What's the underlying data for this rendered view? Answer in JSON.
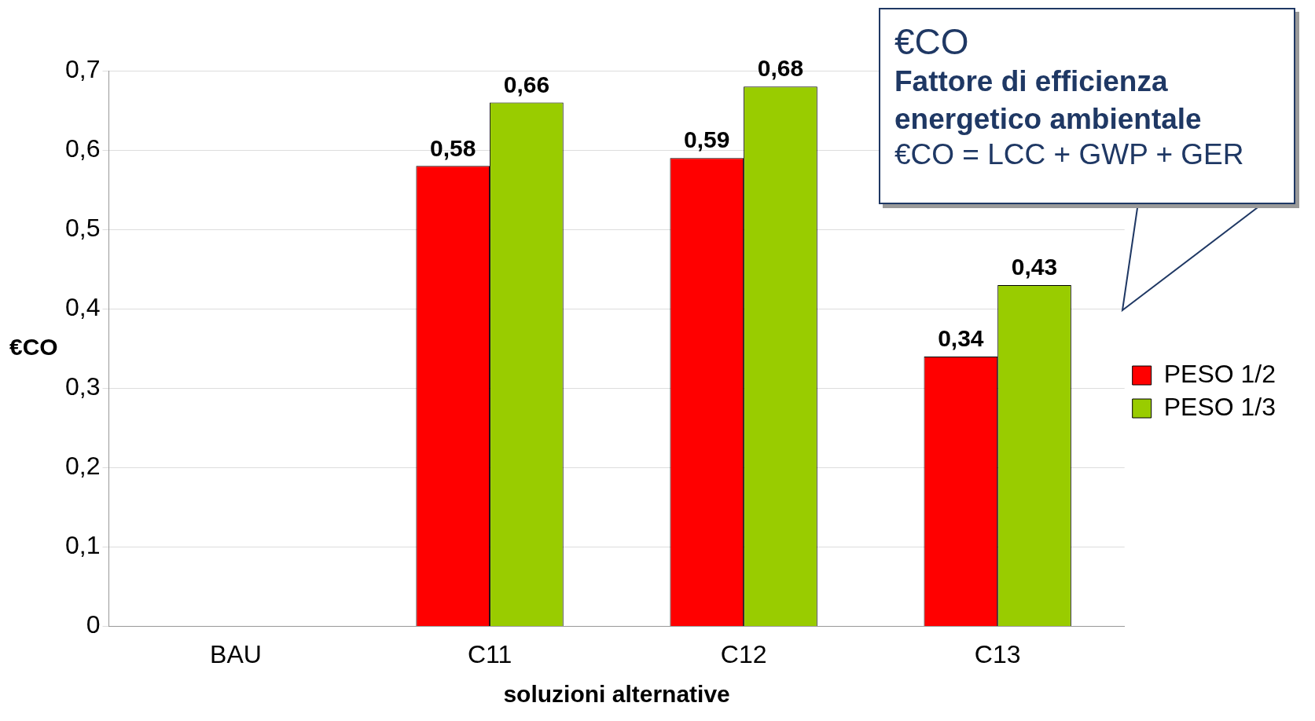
{
  "chart_data": {
    "type": "bar",
    "xlabel": "soluzioni alternative",
    "ylabel": "€CO",
    "categories": [
      "BAU",
      "C11",
      "C12",
      "C13"
    ],
    "series": [
      {
        "name": "PESO 1/2",
        "color": "#ff0000",
        "values": [
          0,
          0.58,
          0.59,
          0.34
        ],
        "value_labels": [
          null,
          "0,58",
          "0,59",
          "0,34"
        ]
      },
      {
        "name": "PESO 1/3",
        "color": "#99cc00",
        "values": [
          0,
          0.66,
          0.68,
          0.43
        ],
        "value_labels": [
          null,
          "0,66",
          "0,68",
          "0,43"
        ]
      }
    ],
    "ylim": [
      0,
      0.7
    ],
    "yticks": [
      0,
      {
        "value": 0.1,
        "label": "0,1"
      },
      {
        "value": 0.2,
        "label": "0,2"
      },
      {
        "value": 0.3,
        "label": "0,3"
      },
      {
        "value": 0.4,
        "label": "0,4"
      },
      {
        "value": 0.5,
        "label": "0,5"
      },
      {
        "value": 0.6,
        "label": "0,6"
      },
      {
        "value": 0.7,
        "label": "0,7"
      }
    ],
    "grid": "y",
    "legend": "right",
    "annotations": [
      "€CO",
      "Fattore di efficienza energetico ambientale",
      "€CO = LCC + GWP + GER"
    ]
  }
}
